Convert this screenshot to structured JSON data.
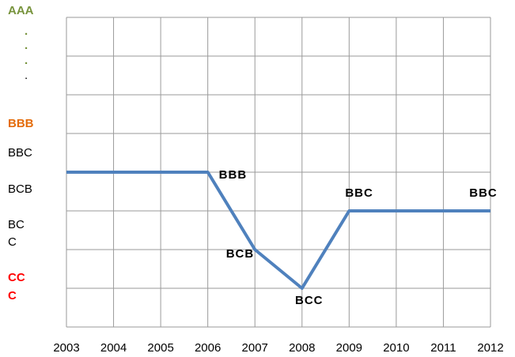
{
  "chart_data": {
    "type": "line",
    "categories": [
      "2003",
      "2004",
      "2005",
      "2006",
      "2007",
      "2008",
      "2009",
      "2010",
      "2011",
      "2012"
    ],
    "series": [
      {
        "name": null,
        "color": "#4f81bd",
        "values": [
          4,
          4,
          4,
          4,
          2,
          1,
          3,
          3,
          3,
          3
        ],
        "value_labels": [
          null,
          null,
          null,
          "BBB",
          "BCB",
          "BCC",
          "BBC",
          null,
          null,
          "BBC"
        ]
      }
    ],
    "ylim": [
      0,
      8
    ],
    "grid": true,
    "y_axis_labels": [
      {
        "text": "AAA",
        "color": "#77933c"
      },
      {
        "text": ".",
        "color": "#77933c"
      },
      {
        "text": ".",
        "color": "#77933c"
      },
      {
        "text": ".",
        "color": "#77933c"
      },
      {
        "text": ".",
        "color": "#000000"
      },
      {
        "text": "BBB",
        "color": "#e46c0a"
      },
      {
        "text": "BBC",
        "color": "#000000"
      },
      {
        "text": "BCB",
        "color": "#000000"
      },
      {
        "text": "BC",
        "color": "#000000"
      },
      {
        "text": "C",
        "color": "#000000"
      },
      {
        "text": "CC",
        "color": "#ff0000"
      },
      {
        "text": "C",
        "color": "#ff0000"
      }
    ]
  }
}
